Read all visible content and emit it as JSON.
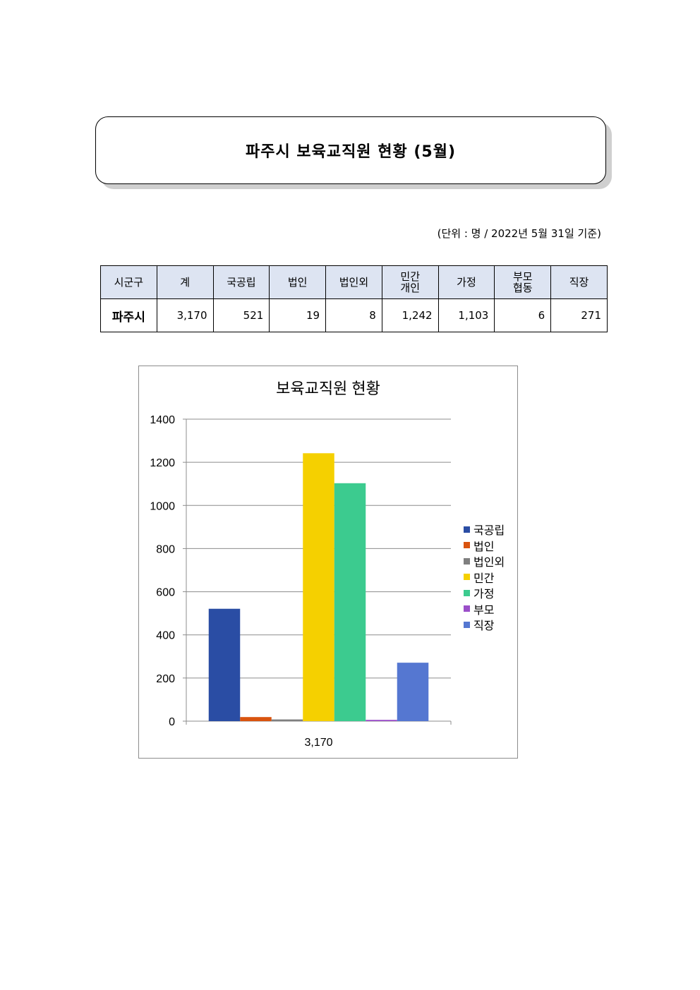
{
  "title": "파주시 보육교직원 현황 (5월)",
  "unit_note": "(단위 : 명 / 2022년 5월 31일 기준)",
  "table": {
    "headers": [
      {
        "lines": [
          "시군구"
        ]
      },
      {
        "lines": [
          "계"
        ]
      },
      {
        "lines": [
          "국공립"
        ]
      },
      {
        "lines": [
          "법인"
        ]
      },
      {
        "lines": [
          "법인외"
        ]
      },
      {
        "lines": [
          "민간",
          "개인"
        ]
      },
      {
        "lines": [
          "가정"
        ]
      },
      {
        "lines": [
          "부모",
          "협동"
        ]
      },
      {
        "lines": [
          "직장"
        ]
      }
    ],
    "row": [
      "파주시",
      "3,170",
      "521",
      "19",
      "8",
      "1,242",
      "1,103",
      "6",
      "271"
    ]
  },
  "chart_data": {
    "type": "bar",
    "title": "보육교직원 현황",
    "categories": [
      "3,170"
    ],
    "series": [
      {
        "name": "국공립",
        "values": [
          521
        ],
        "color": "#2a4da4"
      },
      {
        "name": "법인",
        "values": [
          19
        ],
        "color": "#d9540f"
      },
      {
        "name": "법인외",
        "values": [
          8
        ],
        "color": "#7f7f7f"
      },
      {
        "name": "민간",
        "values": [
          1242
        ],
        "color": "#f5d000"
      },
      {
        "name": "가정",
        "values": [
          1103
        ],
        "color": "#3ccb8f"
      },
      {
        "name": "부모",
        "values": [
          6
        ],
        "color": "#9b4fc9"
      },
      {
        "name": "직장",
        "values": [
          271
        ],
        "color": "#5577d1"
      }
    ],
    "ylim": [
      0,
      1400
    ],
    "yticks": [
      0,
      200,
      400,
      600,
      800,
      1000,
      1200,
      1400
    ],
    "grid": true,
    "legend_position": "right"
  }
}
